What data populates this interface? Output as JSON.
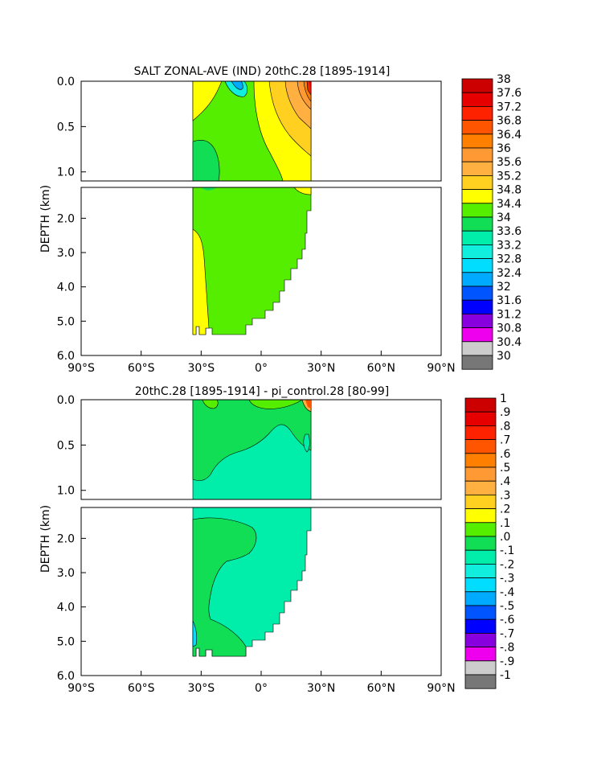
{
  "chart_data": [
    {
      "type": "heatmap",
      "title": "SALT ZONAL-AVE (IND) 20thC.28 [1895-1914]",
      "ylabel": "DEPTH (km)",
      "x_ticks": [
        "90°S",
        "60°S",
        "30°S",
        "0°",
        "30°N",
        "60°N",
        "90°N"
      ],
      "y_ticks_upper": [
        "0.0",
        "0.5",
        "1.0"
      ],
      "y_ticks_lower": [
        "2.0",
        "3.0",
        "4.0",
        "5.0",
        "6.0"
      ],
      "xlim": [
        -90,
        90
      ],
      "ylim_upper_km": [
        0,
        1.1
      ],
      "ylim_lower_km": [
        1.1,
        6.0
      ],
      "colorbar_labels": [
        "38",
        "37.6",
        "37.2",
        "36.8",
        "36.4",
        "36",
        "35.6",
        "35.2",
        "34.8",
        "34.4",
        "34",
        "33.6",
        "33.2",
        "32.8",
        "32.4",
        "32",
        "31.6",
        "31.2",
        "30.8",
        "30.4",
        "30"
      ],
      "colorbar_colors": [
        "#cc0000",
        "#e60000",
        "#ff2200",
        "#ff5500",
        "#ff8000",
        "#ff9933",
        "#ffb040",
        "#ffd020",
        "#ffff00",
        "#55ee00",
        "#11dd55",
        "#00eeaa",
        "#11eedd",
        "#00ddff",
        "#00aaff",
        "#0055ff",
        "#0000ff",
        "#8800dd",
        "#ee00ee",
        "#cccccc",
        "#777777"
      ]
    },
    {
      "type": "heatmap",
      "title": "20thC.28 [1895-1914] - pi_control.28 [80-99]",
      "ylabel": "DEPTH (km)",
      "x_ticks": [
        "90°S",
        "60°S",
        "30°S",
        "0°",
        "30°N",
        "60°N",
        "90°N"
      ],
      "y_ticks_upper": [
        "0.0",
        "0.5",
        "1.0"
      ],
      "y_ticks_lower": [
        "2.0",
        "3.0",
        "4.0",
        "5.0",
        "6.0"
      ],
      "xlim": [
        -90,
        90
      ],
      "ylim_upper_km": [
        0,
        1.1
      ],
      "ylim_lower_km": [
        1.1,
        6.0
      ],
      "colorbar_labels": [
        "1",
        ".9",
        ".8",
        ".7",
        ".6",
        ".5",
        ".4",
        ".3",
        ".2",
        ".1",
        ".0",
        "-.1",
        "-.2",
        "-.3",
        "-.4",
        "-.5",
        "-.6",
        "-.7",
        "-.8",
        "-.9",
        "-1"
      ],
      "colorbar_colors": [
        "#cc0000",
        "#e60000",
        "#ff2200",
        "#ff5500",
        "#ff8000",
        "#ff9933",
        "#ffb040",
        "#ffd020",
        "#ffff00",
        "#55ee00",
        "#11dd55",
        "#00eeaa",
        "#11eedd",
        "#00ddff",
        "#00aaff",
        "#0055ff",
        "#0000ff",
        "#8800dd",
        "#ee00ee",
        "#cccccc",
        "#777777"
      ]
    }
  ]
}
